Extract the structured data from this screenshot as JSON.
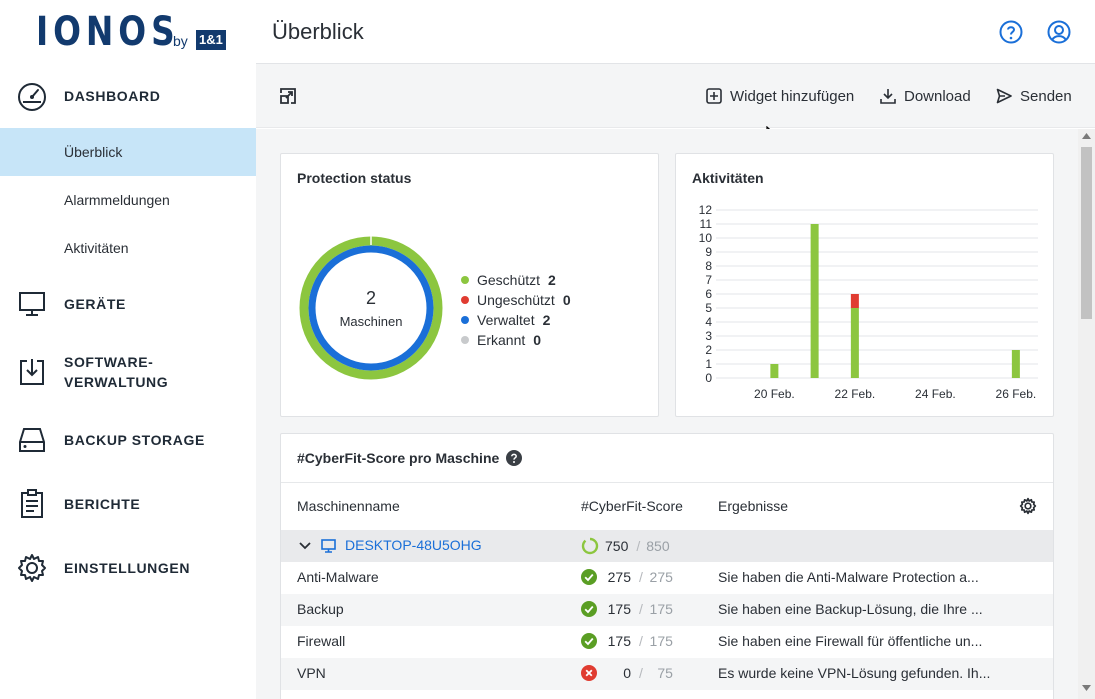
{
  "logo": {
    "brand": "IONOS",
    "by": "by",
    "partner": "1&1"
  },
  "sidebar": {
    "dashboard": "DASHBOARD",
    "sub_items": [
      "Überblick",
      "Alarmmeldungen",
      "Aktivitäten"
    ],
    "geraete": "GERÄTE",
    "software_1": "SOFTWARE-",
    "software_2": "VERWALTUNG",
    "backup": "BACKUP STORAGE",
    "berichte": "BERICHTE",
    "einstellungen": "EINSTELLUNGEN"
  },
  "header": {
    "title": "Überblick",
    "icons": [
      "help-icon",
      "user-icon"
    ]
  },
  "toolbar": {
    "add_widget": "Widget hinzufügen",
    "download": "Download",
    "send": "Senden"
  },
  "protection": {
    "title": "Protection status",
    "count": "2",
    "count_label": "Maschinen",
    "legend": [
      {
        "label": "Geschützt",
        "value": "2",
        "color": "#8cc63f"
      },
      {
        "label": "Ungeschützt",
        "value": "0",
        "color": "#e03c31"
      },
      {
        "label": "Verwaltet",
        "value": "2",
        "color": "#1a6fd8"
      },
      {
        "label": "Erkannt",
        "value": "0",
        "color": "#c8cacc"
      }
    ]
  },
  "activities": {
    "title": "Aktivitäten"
  },
  "chart_data": {
    "type": "bar",
    "title": "Aktivitäten",
    "x_tick_labels": [
      "20 Feb.",
      "22 Feb.",
      "24 Feb.",
      "26 Feb."
    ],
    "categories": [
      "19 Feb.",
      "20 Feb.",
      "21 Feb.",
      "22 Feb.",
      "23 Feb.",
      "24 Feb.",
      "25 Feb.",
      "26 Feb."
    ],
    "series": [
      {
        "name": "",
        "color": "#8cc63f",
        "values": [
          0,
          1,
          11,
          5,
          0,
          0,
          0,
          2
        ]
      },
      {
        "name": "",
        "color": "#e03c31",
        "values": [
          0,
          0,
          0,
          1,
          0,
          0,
          0,
          0
        ]
      }
    ],
    "ylim": [
      0,
      12
    ],
    "y_ticks": [
      0,
      1,
      2,
      3,
      4,
      5,
      6,
      7,
      8,
      9,
      10,
      11,
      12
    ],
    "stacked": true,
    "grid": true
  },
  "cyberfit": {
    "title": "#CyberFit-Score pro Maschine",
    "columns": [
      "Maschinenname",
      "#CyberFit-Score",
      "Ergebnisse"
    ],
    "machine": {
      "name": "DESKTOP-48U5OHG",
      "score": "750",
      "max": "850"
    },
    "rows": [
      {
        "name": "Anti-Malware",
        "score": "275",
        "max": "275",
        "status": "ok",
        "result": "Sie haben die Anti-Malware Protection a..."
      },
      {
        "name": "Backup",
        "score": "175",
        "max": "175",
        "status": "ok",
        "result": "Sie haben eine Backup-Lösung, die Ihre ..."
      },
      {
        "name": "Firewall",
        "score": "175",
        "max": "175",
        "status": "ok",
        "result": "Sie haben eine Firewall für öffentliche un..."
      },
      {
        "name": "VPN",
        "score": "0",
        "max": "75",
        "status": "fail",
        "result": "Es wurde keine VPN-Lösung gefunden. Ih..."
      }
    ]
  }
}
